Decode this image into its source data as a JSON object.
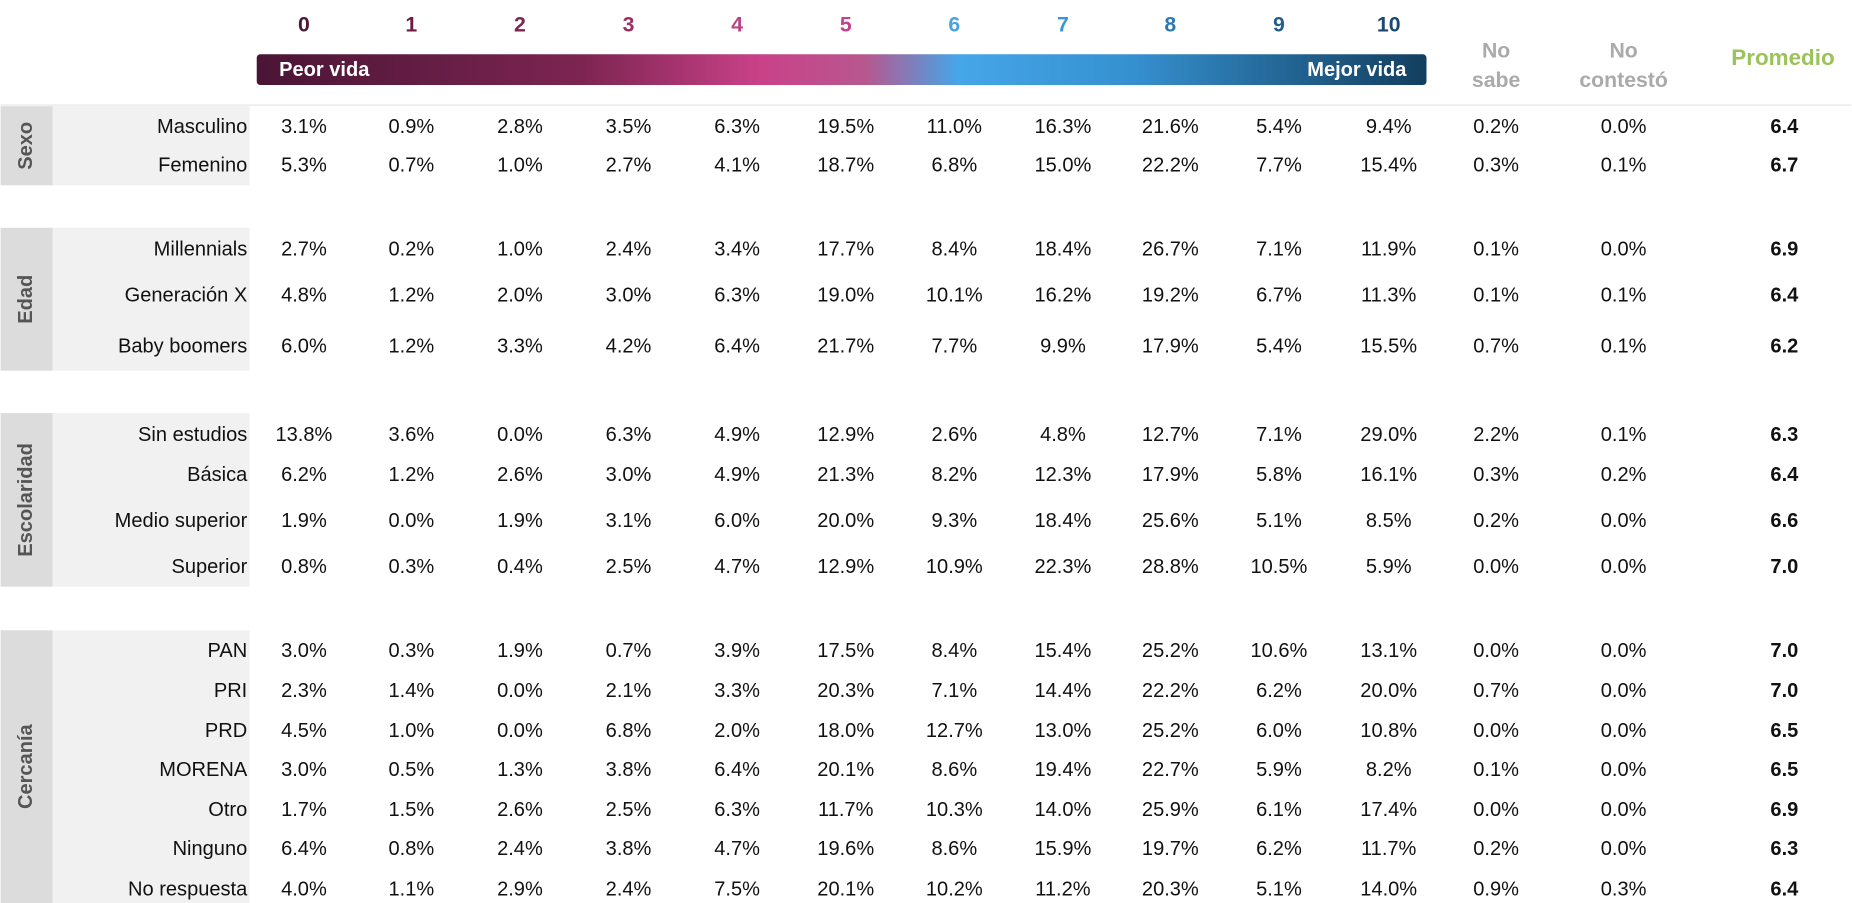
{
  "header": {
    "scale": [
      "0",
      "1",
      "2",
      "3",
      "4",
      "5",
      "6",
      "7",
      "8",
      "9",
      "10"
    ],
    "low": "Peor vida",
    "high": "Mejor vida",
    "no_sabe": [
      "No",
      "sabe"
    ],
    "no_contesto": [
      "No",
      "contestó"
    ],
    "promedio": "Promedio"
  },
  "groups": [
    {
      "label": "Sexo",
      "rows": [
        {
          "label": "Masculino",
          "cells": [
            "3.1%",
            "0.9%",
            "2.8%",
            "3.5%",
            "6.3%",
            "19.5%",
            "11.0%",
            "16.3%",
            "21.6%",
            "5.4%",
            "9.4%",
            "0.2%",
            "0.0%"
          ],
          "mean": "6.4"
        },
        {
          "label": "Femenino",
          "cells": [
            "5.3%",
            "0.7%",
            "1.0%",
            "2.7%",
            "4.1%",
            "18.7%",
            "6.8%",
            "15.0%",
            "22.2%",
            "7.7%",
            "15.4%",
            "0.3%",
            "0.1%"
          ],
          "mean": "6.7"
        }
      ]
    },
    {
      "label": "Edad",
      "rows": [
        {
          "label": "Millennials",
          "cells": [
            "2.7%",
            "0.2%",
            "1.0%",
            "2.4%",
            "3.4%",
            "17.7%",
            "8.4%",
            "18.4%",
            "26.7%",
            "7.1%",
            "11.9%",
            "0.1%",
            "0.0%"
          ],
          "mean": "6.9"
        },
        {
          "label": "Generación X",
          "cells": [
            "4.8%",
            "1.2%",
            "2.0%",
            "3.0%",
            "6.3%",
            "19.0%",
            "10.1%",
            "16.2%",
            "19.2%",
            "6.7%",
            "11.3%",
            "0.1%",
            "0.1%"
          ],
          "mean": "6.4"
        },
        {
          "label": "Baby boomers",
          "cells": [
            "6.0%",
            "1.2%",
            "3.3%",
            "4.2%",
            "6.4%",
            "21.7%",
            "7.7%",
            "9.9%",
            "17.9%",
            "5.4%",
            "15.5%",
            "0.7%",
            "0.1%"
          ],
          "mean": "6.2"
        }
      ]
    },
    {
      "label": "Escolaridad",
      "rows": [
        {
          "label": "Sin estudios",
          "cells": [
            "13.8%",
            "3.6%",
            "0.0%",
            "6.3%",
            "4.9%",
            "12.9%",
            "2.6%",
            "4.8%",
            "12.7%",
            "7.1%",
            "29.0%",
            "2.2%",
            "0.1%"
          ],
          "mean": "6.3"
        },
        {
          "label": "Básica",
          "cells": [
            "6.2%",
            "1.2%",
            "2.6%",
            "3.0%",
            "4.9%",
            "21.3%",
            "8.2%",
            "12.3%",
            "17.9%",
            "5.8%",
            "16.1%",
            "0.3%",
            "0.2%"
          ],
          "mean": "6.4"
        },
        {
          "label": "Medio superior",
          "cells": [
            "1.9%",
            "0.0%",
            "1.9%",
            "3.1%",
            "6.0%",
            "20.0%",
            "9.3%",
            "18.4%",
            "25.6%",
            "5.1%",
            "8.5%",
            "0.2%",
            "0.0%"
          ],
          "mean": "6.6"
        },
        {
          "label": "Superior",
          "cells": [
            "0.8%",
            "0.3%",
            "0.4%",
            "2.5%",
            "4.7%",
            "12.9%",
            "10.9%",
            "22.3%",
            "28.8%",
            "10.5%",
            "5.9%",
            "0.0%",
            "0.0%"
          ],
          "mean": "7.0"
        }
      ]
    },
    {
      "label": "Cercanía",
      "rows": [
        {
          "label": "PAN",
          "cells": [
            "3.0%",
            "0.3%",
            "1.9%",
            "0.7%",
            "3.9%",
            "17.5%",
            "8.4%",
            "15.4%",
            "25.2%",
            "10.6%",
            "13.1%",
            "0.0%",
            "0.0%"
          ],
          "mean": "7.0"
        },
        {
          "label": "PRI",
          "cells": [
            "2.3%",
            "1.4%",
            "0.0%",
            "2.1%",
            "3.3%",
            "20.3%",
            "7.1%",
            "14.4%",
            "22.2%",
            "6.2%",
            "20.0%",
            "0.7%",
            "0.0%"
          ],
          "mean": "7.0"
        },
        {
          "label": "PRD",
          "cells": [
            "4.5%",
            "1.0%",
            "0.0%",
            "6.8%",
            "2.0%",
            "18.0%",
            "12.7%",
            "13.0%",
            "25.2%",
            "6.0%",
            "10.8%",
            "0.0%",
            "0.0%"
          ],
          "mean": "6.5"
        },
        {
          "label": "MORENA",
          "cells": [
            "3.0%",
            "0.5%",
            "1.3%",
            "3.8%",
            "6.4%",
            "20.1%",
            "8.6%",
            "19.4%",
            "22.7%",
            "5.9%",
            "8.2%",
            "0.1%",
            "0.0%"
          ],
          "mean": "6.5"
        },
        {
          "label": "Otro",
          "cells": [
            "1.7%",
            "1.5%",
            "2.6%",
            "2.5%",
            "6.3%",
            "11.7%",
            "10.3%",
            "14.0%",
            "25.9%",
            "6.1%",
            "17.4%",
            "0.0%",
            "0.0%"
          ],
          "mean": "6.9"
        },
        {
          "label": "Ninguno",
          "cells": [
            "6.4%",
            "0.8%",
            "2.4%",
            "3.8%",
            "4.7%",
            "19.6%",
            "8.6%",
            "15.9%",
            "19.7%",
            "6.2%",
            "11.7%",
            "0.2%",
            "0.0%"
          ],
          "mean": "6.3"
        },
        {
          "label": "No respuesta",
          "cells": [
            "4.0%",
            "1.1%",
            "2.9%",
            "2.4%",
            "7.5%",
            "20.1%",
            "10.2%",
            "11.2%",
            "20.3%",
            "5.1%",
            "14.0%",
            "0.9%",
            "0.3%"
          ],
          "mean": "6.4"
        }
      ]
    }
  ]
}
